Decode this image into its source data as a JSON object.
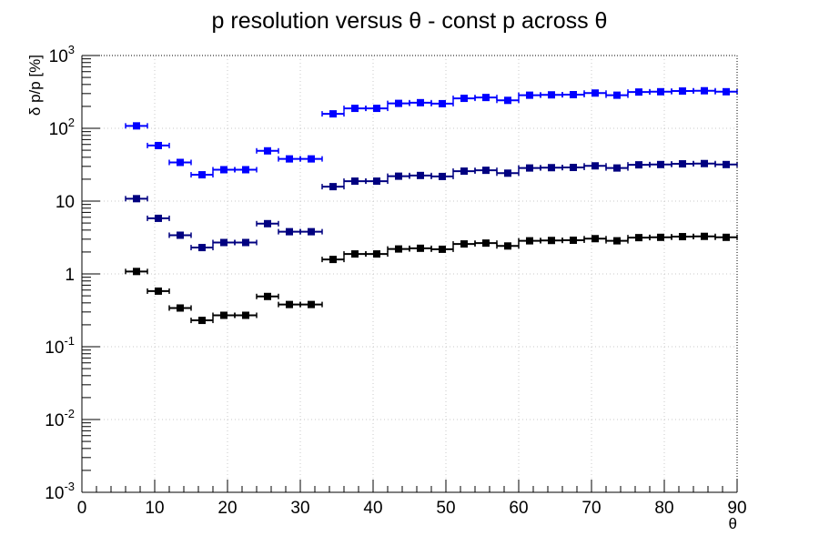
{
  "chart_data": {
    "type": "scatter",
    "title": "p resolution versus θ - const p across θ",
    "xlabel": "θ",
    "ylabel": "δ p/p [%]",
    "xlim": [
      0,
      90
    ],
    "ylim": [
      0.001,
      1000
    ],
    "yscale": "log",
    "grid": true,
    "x_ticks": [
      "0",
      "10",
      "20",
      "30",
      "40",
      "50",
      "60",
      "70",
      "80",
      "90"
    ],
    "y_ticks": [
      {
        "base": "10",
        "exp": "-3"
      },
      {
        "base": "10",
        "exp": "-2"
      },
      {
        "base": "10",
        "exp": "-1"
      },
      {
        "base": "1",
        "exp": ""
      },
      {
        "base": "10",
        "exp": ""
      },
      {
        "base": "10",
        "exp": "2"
      },
      {
        "base": "10",
        "exp": "3"
      }
    ],
    "x": [
      7.5,
      10.5,
      13.5,
      16.5,
      19.5,
      22.5,
      25.5,
      28.5,
      31.5,
      34.5,
      37.5,
      40.5,
      43.5,
      46.5,
      49.5,
      52.5,
      55.5,
      58.5,
      61.5,
      64.5,
      67.5,
      70.5,
      73.5,
      76.5,
      79.5,
      82.5,
      85.5,
      88.5
    ],
    "x_err": 1.5,
    "series": [
      {
        "color": "#0000ff",
        "values": [
          108,
          58,
          34,
          23,
          27,
          27,
          49,
          38,
          38,
          158,
          188,
          188,
          220,
          225,
          218,
          258,
          265,
          242,
          285,
          288,
          290,
          305,
          285,
          315,
          318,
          325,
          328,
          318
        ]
      },
      {
        "color": "#000080",
        "values": [
          10.8,
          5.8,
          3.4,
          2.3,
          2.7,
          2.7,
          4.9,
          3.8,
          3.8,
          15.8,
          18.8,
          18.8,
          22,
          22.5,
          21.8,
          25.8,
          26.5,
          24.2,
          28.5,
          28.8,
          29,
          30.5,
          28.5,
          31.5,
          31.8,
          32.5,
          32.8,
          31.8
        ]
      },
      {
        "color": "#000000",
        "values": [
          1.08,
          0.58,
          0.34,
          0.23,
          0.27,
          0.27,
          0.49,
          0.38,
          0.38,
          1.58,
          1.88,
          1.88,
          2.2,
          2.25,
          2.18,
          2.58,
          2.65,
          2.42,
          2.85,
          2.88,
          2.9,
          3.05,
          2.85,
          3.15,
          3.18,
          3.25,
          3.28,
          3.18
        ]
      }
    ]
  }
}
